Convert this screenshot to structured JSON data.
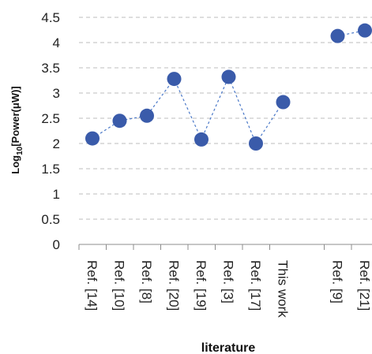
{
  "chart_data": {
    "type": "line",
    "xlabel": "literature",
    "ylabel_base": "Log",
    "ylabel_sub": "10",
    "ylabel_rest": "[Power(μW)]",
    "ylim": [
      0,
      4.5
    ],
    "yticks": [
      "0",
      "0.5",
      "1",
      "1.5",
      "2",
      "2.5",
      "3",
      "3.5",
      "4",
      "4.5"
    ],
    "grid": true,
    "marker_color": "#3a5baa",
    "line_color": "#4a78c8",
    "line_style": "dashed",
    "groups": [
      {
        "categories": [
          "Ref. [14]",
          "Ref. [10]",
          "Ref. [8]",
          "Ref. [20]",
          "Ref. [19]",
          "Ref. [3]",
          "Ref. [17]",
          "This work"
        ],
        "values": [
          2.1,
          2.45,
          2.55,
          3.28,
          2.08,
          3.32,
          2.0,
          2.82
        ]
      },
      {
        "categories": [
          "Ref. [9]",
          "Ref. [21]"
        ],
        "values": [
          4.13,
          4.24
        ]
      }
    ]
  }
}
